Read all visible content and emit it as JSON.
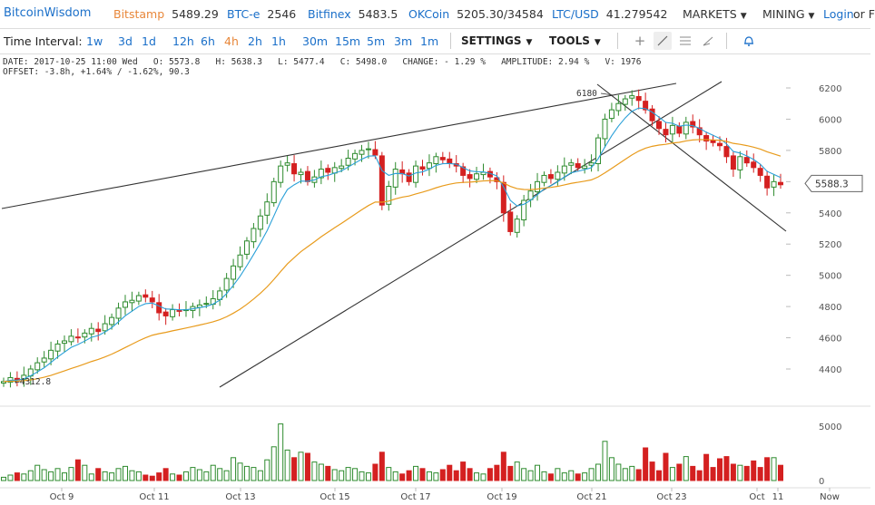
{
  "header": {
    "brand": "BitcoinWisdom",
    "tickers": [
      {
        "exchange": "Bitstamp",
        "price": "5489.29",
        "highlight": true
      },
      {
        "exchange": "BTC-e",
        "price": "2546",
        "highlight": false
      },
      {
        "exchange": "Bitfinex",
        "price": "5483.5",
        "highlight": false
      },
      {
        "exchange": "OKCoin",
        "price": "5205.30/34584",
        "highlight": false
      },
      {
        "exchange": "LTC/USD",
        "price": "41.279542",
        "highlight": false
      }
    ],
    "markets_label": "MARKETS",
    "mining_label": "MINING",
    "login_label": "Login",
    "or_label": "or F"
  },
  "toolbar": {
    "time_interval_label": "Time Interval:",
    "intervals": [
      "1w",
      "3d",
      "1d",
      "12h",
      "6h",
      "4h",
      "2h",
      "1h",
      "30m",
      "15m",
      "5m",
      "3m",
      "1m"
    ],
    "active_interval": "4h",
    "settings_label": "SETTINGS",
    "tools_label": "TOOLS",
    "tool_icons": [
      "crosshair-icon",
      "line-draw-icon",
      "fib-lines-icon",
      "pencil-icon",
      "alert-bell-icon"
    ]
  },
  "info": {
    "line1": "DATE: 2017-10-25 11:00 Wed   O: 5573.8   H: 5638.3   L: 5477.4   C: 5498.0   CHANGE: - 1.29 %   AMPLITUDE: 2.94 %   V: 1976",
    "line2": "OFFSET: -3.8h, +1.64% / -1.62%, 90.3"
  },
  "chart_data": {
    "type": "candlestick",
    "y_axis_ticks": [
      "6200",
      "6000",
      "5800",
      "5600",
      "5400",
      "5200",
      "5000",
      "4800",
      "4600",
      "4400"
    ],
    "y_range": [
      4280,
      6260
    ],
    "volume_axis_ticks": [
      "5000",
      "0"
    ],
    "x_axis_ticks": [
      "Oct 9",
      "Oct 11",
      "Oct 13",
      "Oct 15",
      "Oct 17",
      "Oct 19",
      "Oct 21",
      "Oct 23",
      "Oct",
      "11",
      "Now"
    ],
    "current_price_label": "5588.3",
    "high_annotation": "6180",
    "low_annotation": "4312.8",
    "colors": {
      "up": "#2e8b2e",
      "down": "#d42020",
      "ma_fast": "#2aa0d8",
      "ma_slow": "#e89b1c",
      "trendline": "#333333"
    },
    "closes": [
      4320,
      4345,
      4330,
      4360,
      4400,
      4440,
      4470,
      4520,
      4560,
      4580,
      4610,
      4600,
      4630,
      4660,
      4640,
      4690,
      4730,
      4790,
      4830,
      4840,
      4870,
      4860,
      4830,
      4760,
      4740,
      4780,
      4770,
      4780,
      4800,
      4810,
      4820,
      4850,
      4900,
      4980,
      5060,
      5130,
      5220,
      5300,
      5380,
      5470,
      5600,
      5700,
      5720,
      5650,
      5660,
      5600,
      5630,
      5680,
      5660,
      5690,
      5700,
      5750,
      5780,
      5800,
      5810,
      5770,
      5450,
      5570,
      5680,
      5650,
      5600,
      5700,
      5680,
      5720,
      5760,
      5740,
      5720,
      5700,
      5640,
      5620,
      5650,
      5660,
      5630,
      5600,
      5400,
      5280,
      5360,
      5480,
      5540,
      5600,
      5640,
      5620,
      5660,
      5700,
      5720,
      5690,
      5700,
      5720,
      5880,
      6000,
      6060,
      6100,
      6130,
      6150,
      6120,
      6060,
      5990,
      5940,
      5900,
      5960,
      5910,
      5980,
      5950,
      5900,
      5860,
      5850,
      5830,
      5760,
      5680,
      5760,
      5720,
      5690,
      5640,
      5560,
      5600,
      5580
    ],
    "volumes": [
      300,
      500,
      700,
      600,
      900,
      1400,
      1000,
      800,
      1100,
      700,
      1200,
      1900,
      1400,
      600,
      1100,
      800,
      700,
      1100,
      1300,
      900,
      800,
      500,
      400,
      700,
      1100,
      600,
      500,
      800,
      1200,
      1000,
      800,
      1400,
      1100,
      900,
      2100,
      1600,
      1300,
      1200,
      900,
      1900,
      3100,
      5200,
      2800,
      2100,
      2600,
      2500,
      1700,
      1500,
      1300,
      1000,
      900,
      1200,
      1100,
      800,
      700,
      1500,
      2600,
      1200,
      800,
      600,
      900,
      1300,
      1100,
      800,
      700,
      1000,
      1400,
      900,
      1700,
      1100,
      700,
      600,
      1100,
      1400,
      2600,
      1300,
      1700,
      1100,
      900,
      1400,
      800,
      600,
      1100,
      700,
      900,
      600,
      700,
      1100,
      1500,
      3600,
      2100,
      1500,
      1100,
      1300,
      1000,
      3000,
      1700,
      900,
      2500,
      1200,
      1500,
      2200,
      1300,
      900,
      2400,
      1200,
      2000,
      2200,
      1500,
      1400,
      1300,
      1800,
      1200,
      2100,
      2100,
      1400
    ]
  }
}
